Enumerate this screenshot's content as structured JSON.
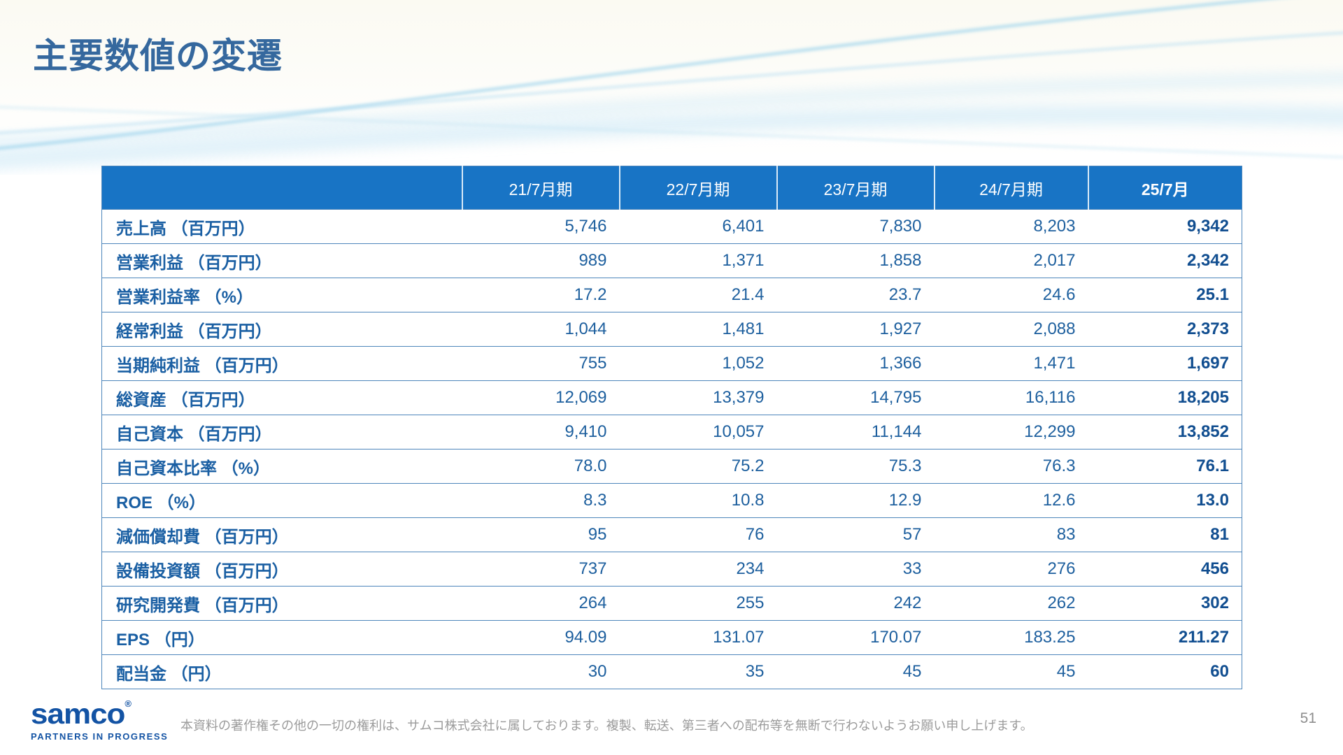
{
  "slide": {
    "title": "主要数値の変遷",
    "page_number": "51",
    "footer_note": "本資料の著作権その他の一切の権利は、サムコ株式会社に属しております。複製、転送、第三者への配布等を無断で行わないようお願い申し上げます。",
    "logo": {
      "name": "samco",
      "registered_mark": "®",
      "tagline": "PARTNERS IN PROGRESS"
    }
  },
  "colors": {
    "header_bg": "#1874c5",
    "header_text": "#ffffff",
    "title_text": "#35689e",
    "label_text": "#1a5fa3",
    "value_text": "#1d5f9e",
    "current_value_text": "#114e90",
    "row_border": "#4e86bb",
    "logo_blue": "#1353a4",
    "footer_text": "#9b9b9b",
    "swoosh_blue": "#9fd4ec"
  },
  "table": {
    "columns": [
      "",
      "21/7月期",
      "22/7月期",
      "23/7月期",
      "24/7月期",
      "25/7月"
    ],
    "rows": [
      {
        "label": "売上高 （百万円）",
        "values": [
          "5,746",
          "6,401",
          "7,830",
          "8,203",
          "9,342"
        ]
      },
      {
        "label": "営業利益 （百万円）",
        "values": [
          "989",
          "1,371",
          "1,858",
          "2,017",
          "2,342"
        ]
      },
      {
        "label": "営業利益率 （%）",
        "values": [
          "17.2",
          "21.4",
          "23.7",
          "24.6",
          "25.1"
        ]
      },
      {
        "label": "経常利益 （百万円）",
        "values": [
          "1,044",
          "1,481",
          "1,927",
          "2,088",
          "2,373"
        ]
      },
      {
        "label": "当期純利益 （百万円）",
        "values": [
          "755",
          "1,052",
          "1,366",
          "1,471",
          "1,697"
        ]
      },
      {
        "label": "総資産 （百万円）",
        "values": [
          "12,069",
          "13,379",
          "14,795",
          "16,116",
          "18,205"
        ]
      },
      {
        "label": "自己資本 （百万円）",
        "values": [
          "9,410",
          "10,057",
          "11,144",
          "12,299",
          "13,852"
        ]
      },
      {
        "label": "自己資本比率 （%）",
        "values": [
          "78.0",
          "75.2",
          "75.3",
          "76.3",
          "76.1"
        ]
      },
      {
        "label": "ROE （%）",
        "values": [
          "8.3",
          "10.8",
          "12.9",
          "12.6",
          "13.0"
        ]
      },
      {
        "label": "減価償却費 （百万円）",
        "values": [
          "95",
          "76",
          "57",
          "83",
          "81"
        ]
      },
      {
        "label": "設備投資額 （百万円）",
        "values": [
          "737",
          "234",
          "33",
          "276",
          "456"
        ]
      },
      {
        "label": "研究開発費 （百万円）",
        "values": [
          "264",
          "255",
          "242",
          "262",
          "302"
        ]
      },
      {
        "label": "EPS （円）",
        "values": [
          "94.09",
          "131.07",
          "170.07",
          "183.25",
          "211.27"
        ]
      },
      {
        "label": "配当金 （円）",
        "values": [
          "30",
          "35",
          "45",
          "45",
          "60"
        ]
      }
    ]
  }
}
